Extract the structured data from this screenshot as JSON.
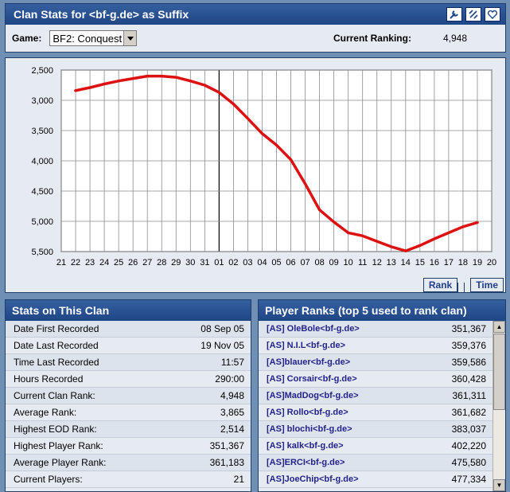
{
  "header": {
    "title": "Clan Stats for <bf-g.de> as Suffix",
    "game_label": "Game:",
    "game_selected": "BF2: Conquest",
    "ranking_label": "Current Ranking:",
    "ranking_value": "4,948",
    "icons": [
      "tools-icon",
      "edit-icon",
      "heart-icon"
    ]
  },
  "chart_data": {
    "type": "line",
    "title": "",
    "xlabel": "",
    "ylabel": "",
    "x_ticks": [
      "21",
      "22",
      "23",
      "24",
      "25",
      "26",
      "27",
      "28",
      "29",
      "30",
      "31",
      "01",
      "02",
      "03",
      "04",
      "05",
      "06",
      "07",
      "08",
      "09",
      "10",
      "11",
      "12",
      "13",
      "14",
      "15",
      "16",
      "17",
      "18",
      "19",
      "20"
    ],
    "y_ticks": [
      "2,500",
      "3,000",
      "3,500",
      "4,000",
      "4,500",
      "5,000",
      "5,500"
    ],
    "y_tick_values": [
      2500,
      3000,
      3500,
      4000,
      4500,
      5000,
      5500
    ],
    "ylim": [
      2500,
      5500
    ],
    "y_inverted": true,
    "grid": true,
    "line_color": "#dd1111",
    "series": [
      {
        "x": [
          "22",
          "23",
          "24",
          "25",
          "26",
          "27",
          "28",
          "29",
          "30",
          "31",
          "01",
          "02",
          "03",
          "04",
          "05",
          "06",
          "07",
          "08",
          "09",
          "10",
          "11",
          "12",
          "13",
          "14",
          "15",
          "16",
          "17",
          "18",
          "19"
        ],
        "values": [
          2840,
          2790,
          2730,
          2680,
          2640,
          2600,
          2600,
          2620,
          2680,
          2750,
          2870,
          3060,
          3300,
          3550,
          3740,
          3980,
          4380,
          4810,
          5010,
          5190,
          5240,
          5330,
          5420,
          5490,
          5400,
          5290,
          5190,
          5090,
          5020
        ]
      }
    ],
    "tabs": [
      "Rank",
      "Time"
    ]
  },
  "stats": {
    "title": "Stats on This Clan",
    "rows": [
      {
        "label": "Date First Recorded",
        "value": "08 Sep 05"
      },
      {
        "label": "Date Last Recorded",
        "value": "19 Nov 05"
      },
      {
        "label": "Time Last Recorded",
        "value": "11:57"
      },
      {
        "label": "Hours Recorded",
        "value": "290:00"
      },
      {
        "label": "Current Clan Rank:",
        "value": "4,948"
      },
      {
        "label": "Average Rank:",
        "value": "3,865"
      },
      {
        "label": "Highest EOD Rank:",
        "value": "2,514"
      },
      {
        "label": "Highest Player Rank:",
        "value": "351,367"
      },
      {
        "label": "Average Player Rank:",
        "value": "361,183"
      },
      {
        "label": "Current Players:",
        "value": "21"
      }
    ]
  },
  "ranks": {
    "title": "Player Ranks (top 5 used to rank clan)",
    "rows": [
      {
        "name": "[AS] OleBole<bf-g.de>",
        "rank": "351,367"
      },
      {
        "name": "[AS] N.I.L<bf-g.de>",
        "rank": "359,376"
      },
      {
        "name": "[AS]blauer<bf-g.de>",
        "rank": "359,586"
      },
      {
        "name": "[AS] Corsair<bf-g.de>",
        "rank": "360,428"
      },
      {
        "name": "[AS]MadDog<bf-g.de>",
        "rank": "361,311"
      },
      {
        "name": "[AS] Rollo<bf-g.de>",
        "rank": "361,682"
      },
      {
        "name": "[AS] blochi<bf-g.de>",
        "rank": "383,037"
      },
      {
        "name": "[AS] kalk<bf-g.de>",
        "rank": "402,220"
      },
      {
        "name": "[AS]ERCI<bf-g.de>",
        "rank": "475,580"
      },
      {
        "name": "[AS]JoeChip<bf-g.de>",
        "rank": "477,334"
      }
    ]
  }
}
